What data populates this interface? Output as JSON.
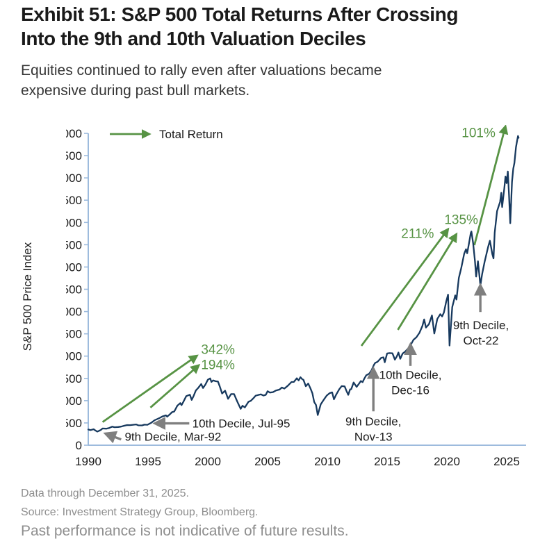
{
  "header": {
    "title_lines": [
      "Exhibit 51: S&P 500 Total Returns After Crossing",
      "Into the 9th and 10th Valuation Deciles"
    ],
    "subtitle_lines": [
      "Equities continued to rally even after valuations became",
      "expensive during past bull markets."
    ]
  },
  "footer": {
    "line1": "Data through December 31, 2025.",
    "line2": "Source: Investment Strategy Group, Bloomberg.",
    "disclaimer": "Past performance is not indicative of future results."
  },
  "colors": {
    "line": "#17395E",
    "green": "#579344",
    "gray": "#7F7F7F",
    "axis": "#9DBBDD",
    "text": "#1A1A1A",
    "footer_text": "#8E8E8E"
  },
  "chart_data": {
    "type": "line",
    "title": "S&P 500 Total Returns After Crossing Into the 9th and 10th Valuation Deciles",
    "ylabel": "S&P 500 Price Index",
    "legend": {
      "label": "Total Return",
      "symbol": "green-arrow"
    },
    "x_ticks": [
      1990,
      1995,
      2000,
      2005,
      2010,
      2015,
      2020,
      2025
    ],
    "x_range": [
      1990,
      2026.2
    ],
    "y_min": 0,
    "y_max": 7000,
    "y_step": 500,
    "grid": "off",
    "series": [
      {
        "name": "S&P 500 Price Index",
        "points": [
          [
            1990.0,
            353
          ],
          [
            1990.2,
            340
          ],
          [
            1990.45,
            358
          ],
          [
            1990.6,
            330
          ],
          [
            1990.75,
            306
          ],
          [
            1990.9,
            322
          ],
          [
            1991.05,
            343
          ],
          [
            1991.2,
            375
          ],
          [
            1991.5,
            371
          ],
          [
            1991.75,
            387
          ],
          [
            1992.0,
            417
          ],
          [
            1992.2,
            404
          ],
          [
            1992.5,
            408
          ],
          [
            1992.75,
            418
          ],
          [
            1993.0,
            436
          ],
          [
            1993.25,
            452
          ],
          [
            1993.5,
            450
          ],
          [
            1993.75,
            459
          ],
          [
            1994.0,
            466
          ],
          [
            1994.2,
            446
          ],
          [
            1994.5,
            444
          ],
          [
            1994.7,
            462
          ],
          [
            1994.95,
            459
          ],
          [
            1995.25,
            501
          ],
          [
            1995.55,
            562
          ],
          [
            1995.75,
            584
          ],
          [
            1996.0,
            616
          ],
          [
            1996.2,
            645
          ],
          [
            1996.5,
            671
          ],
          [
            1996.6,
            640
          ],
          [
            1996.8,
            687
          ],
          [
            1997.0,
            741
          ],
          [
            1997.2,
            757
          ],
          [
            1997.45,
            885
          ],
          [
            1997.7,
            947
          ],
          [
            1997.8,
            900
          ],
          [
            1997.95,
            970
          ],
          [
            1998.2,
            1102
          ],
          [
            1998.5,
            1134
          ],
          [
            1998.65,
            1017
          ],
          [
            1998.8,
            1099
          ],
          [
            1999.0,
            1229
          ],
          [
            1999.2,
            1286
          ],
          [
            1999.45,
            1373
          ],
          [
            1999.6,
            1283
          ],
          [
            1999.8,
            1363
          ],
          [
            2000.0,
            1469
          ],
          [
            2000.2,
            1499
          ],
          [
            2000.3,
            1420
          ],
          [
            2000.45,
            1455
          ],
          [
            2000.65,
            1436
          ],
          [
            2000.85,
            1429
          ],
          [
            2001.0,
            1320
          ],
          [
            2001.2,
            1160
          ],
          [
            2001.45,
            1224
          ],
          [
            2001.7,
            1041
          ],
          [
            2001.95,
            1148
          ],
          [
            2002.2,
            1147
          ],
          [
            2002.45,
            990
          ],
          [
            2002.75,
            815
          ],
          [
            2002.9,
            885
          ],
          [
            2003.1,
            848
          ],
          [
            2003.4,
            975
          ],
          [
            2003.6,
            996
          ],
          [
            2003.8,
            1050
          ],
          [
            2004.0,
            1112
          ],
          [
            2004.2,
            1126
          ],
          [
            2004.45,
            1141
          ],
          [
            2004.65,
            1115
          ],
          [
            2004.85,
            1130
          ],
          [
            2005.0,
            1212
          ],
          [
            2005.2,
            1181
          ],
          [
            2005.45,
            1191
          ],
          [
            2005.7,
            1229
          ],
          [
            2006.0,
            1248
          ],
          [
            2006.2,
            1295
          ],
          [
            2006.4,
            1270
          ],
          [
            2006.7,
            1336
          ],
          [
            2007.0,
            1418
          ],
          [
            2007.2,
            1421
          ],
          [
            2007.45,
            1503
          ],
          [
            2007.6,
            1455
          ],
          [
            2007.75,
            1527
          ],
          [
            2007.9,
            1481
          ],
          [
            2008.0,
            1468
          ],
          [
            2008.2,
            1323
          ],
          [
            2008.4,
            1385
          ],
          [
            2008.6,
            1267
          ],
          [
            2008.75,
            1165
          ],
          [
            2008.9,
            969
          ],
          [
            2009.05,
            903
          ],
          [
            2009.2,
            677
          ],
          [
            2009.45,
            919
          ],
          [
            2009.7,
            1020
          ],
          [
            2009.95,
            1115
          ],
          [
            2010.2,
            1169
          ],
          [
            2010.4,
            1187
          ],
          [
            2010.55,
            1031
          ],
          [
            2010.75,
            1141
          ],
          [
            2011.0,
            1258
          ],
          [
            2011.2,
            1326
          ],
          [
            2011.45,
            1321
          ],
          [
            2011.6,
            1219
          ],
          [
            2011.75,
            1131
          ],
          [
            2011.9,
            1253
          ],
          [
            2012.0,
            1258
          ],
          [
            2012.2,
            1408
          ],
          [
            2012.45,
            1310
          ],
          [
            2012.6,
            1362
          ],
          [
            2012.8,
            1441
          ],
          [
            2012.95,
            1416
          ],
          [
            2013.1,
            1498
          ],
          [
            2013.25,
            1569
          ],
          [
            2013.5,
            1606
          ],
          [
            2013.7,
            1682
          ],
          [
            2013.9,
            1805
          ],
          [
            2014.0,
            1848
          ],
          [
            2014.2,
            1872
          ],
          [
            2014.5,
            1960
          ],
          [
            2014.7,
            1972
          ],
          [
            2014.8,
            1862
          ],
          [
            2015.0,
            2059
          ],
          [
            2015.2,
            2068
          ],
          [
            2015.45,
            2063
          ],
          [
            2015.65,
            1920
          ],
          [
            2015.8,
            1990
          ],
          [
            2015.95,
            2080
          ],
          [
            2016.1,
            1940
          ],
          [
            2016.3,
            2060
          ],
          [
            2016.5,
            2099
          ],
          [
            2016.75,
            2168
          ],
          [
            2016.95,
            2239
          ],
          [
            2017.2,
            2363
          ],
          [
            2017.45,
            2423
          ],
          [
            2017.7,
            2519
          ],
          [
            2017.95,
            2674
          ],
          [
            2018.1,
            2824
          ],
          [
            2018.25,
            2641
          ],
          [
            2018.5,
            2718
          ],
          [
            2018.75,
            2914
          ],
          [
            2018.95,
            2507
          ],
          [
            2019.2,
            2834
          ],
          [
            2019.45,
            2942
          ],
          [
            2019.6,
            2890
          ],
          [
            2019.75,
            2977
          ],
          [
            2019.95,
            3231
          ],
          [
            2020.1,
            3380
          ],
          [
            2020.22,
            2237
          ],
          [
            2020.45,
            3100
          ],
          [
            2020.7,
            3363
          ],
          [
            2020.8,
            3270
          ],
          [
            2021.0,
            3756
          ],
          [
            2021.2,
            3973
          ],
          [
            2021.45,
            4298
          ],
          [
            2021.6,
            4400
          ],
          [
            2021.7,
            4308
          ],
          [
            2021.85,
            4530
          ],
          [
            2022.0,
            4766
          ],
          [
            2022.05,
            4797
          ],
          [
            2022.2,
            4530
          ],
          [
            2022.35,
            4132
          ],
          [
            2022.45,
            3785
          ],
          [
            2022.6,
            4130
          ],
          [
            2022.8,
            3586
          ],
          [
            2022.95,
            3840
          ],
          [
            2023.15,
            4109
          ],
          [
            2023.45,
            4450
          ],
          [
            2023.6,
            4589
          ],
          [
            2023.8,
            4288
          ],
          [
            2023.9,
            4194
          ],
          [
            2024.0,
            4770
          ],
          [
            2024.2,
            5254
          ],
          [
            2024.45,
            5460
          ],
          [
            2024.55,
            5667
          ],
          [
            2024.62,
            5346
          ],
          [
            2024.8,
            5762
          ],
          [
            2024.9,
            6032
          ],
          [
            2025.0,
            5882
          ],
          [
            2025.1,
            6144
          ],
          [
            2025.2,
            5612
          ],
          [
            2025.3,
            4983
          ],
          [
            2025.45,
            5912
          ],
          [
            2025.55,
            6205
          ],
          [
            2025.65,
            6339
          ],
          [
            2025.78,
            6688
          ],
          [
            2025.88,
            6840
          ],
          [
            2025.95,
            6940
          ],
          [
            2026.0,
            6900
          ]
        ]
      }
    ],
    "return_arrows": [
      {
        "label": "342%",
        "from": [
          1991.2,
          520
        ],
        "to": [
          1999.1,
          2010
        ],
        "label_at": [
          2000.85,
          2160
        ]
      },
      {
        "label": "194%",
        "from": [
          1995.2,
          845
        ],
        "to": [
          1999.25,
          1795
        ],
        "label_at": [
          2000.85,
          1815
        ]
      },
      {
        "label": "211%",
        "from": [
          2012.85,
          2230
        ],
        "to": [
          2020.1,
          4850
        ],
        "label_at": [
          2017.55,
          4760
        ]
      },
      {
        "label": "135%",
        "from": [
          2015.9,
          2590
        ],
        "to": [
          2020.8,
          4740
        ],
        "label_at": [
          2021.2,
          5075
        ]
      },
      {
        "label": "101%",
        "from": [
          2022.3,
          4490
        ],
        "to": [
          2024.9,
          7160
        ],
        "label_at": [
          2022.65,
          7020
        ]
      }
    ],
    "decile_markers": [
      {
        "lines": [
          "9th Decile, Mar-92"
        ],
        "tip": [
          1991.55,
          250
        ],
        "tail": [
          1992.75,
          130
        ],
        "text_at": [
          1993.05,
          195
        ],
        "align": "start"
      },
      {
        "lines": [
          "10th Decile, Jul-95"
        ],
        "tip": [
          1995.7,
          490
        ],
        "tail": [
          1998.45,
          490
        ],
        "text_at": [
          1998.7,
          490
        ],
        "align": "start"
      },
      {
        "lines": [
          "9th Decile,",
          "Nov-13"
        ],
        "tip": [
          2013.85,
          1690
        ],
        "tail": [
          2013.85,
          760
        ],
        "text_at": [
          2013.85,
          540
        ],
        "align": "middle"
      },
      {
        "lines": [
          "10th Decile,",
          "Dec-16"
        ],
        "tip": [
          2016.95,
          2230
        ],
        "tail": [
          2016.95,
          1780
        ],
        "text_at": [
          2016.95,
          1580
        ],
        "align": "middle"
      },
      {
        "lines": [
          "9th Decile,",
          "Oct-22"
        ],
        "tip": [
          2022.8,
          3560
        ],
        "tail": [
          2022.8,
          2990
        ],
        "text_at": [
          2022.85,
          2700
        ],
        "align": "middle"
      }
    ]
  }
}
